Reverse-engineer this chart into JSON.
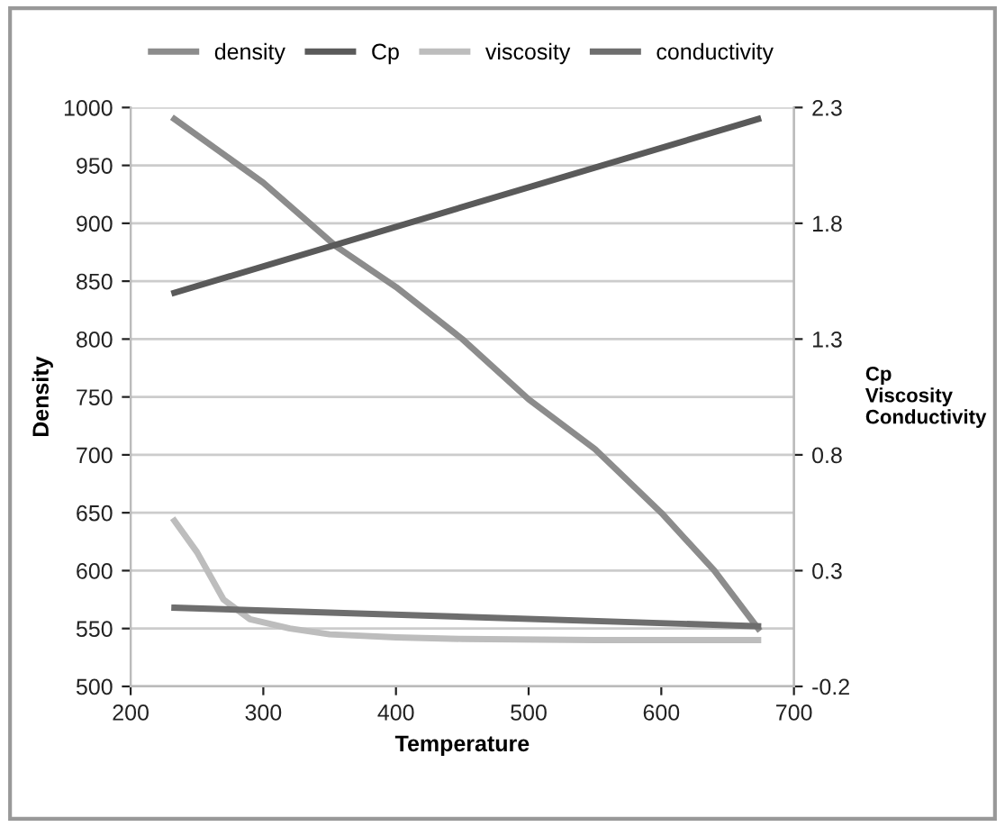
{
  "chart_data": {
    "type": "line",
    "xlabel": "Temperature",
    "ylabel": "Density",
    "y2label": "Cp\nViscosity\nConductivity",
    "xlim": [
      200,
      700
    ],
    "xticks": [
      200,
      300,
      400,
      500,
      600,
      700
    ],
    "ylim": [
      500,
      1000
    ],
    "yticks": [
      500,
      550,
      600,
      650,
      700,
      750,
      800,
      850,
      900,
      950,
      1000
    ],
    "y2lim": [
      -0.2,
      2.3
    ],
    "y2ticks": [
      -0.2,
      0.3,
      0.8,
      1.3,
      1.8,
      2.3
    ],
    "grid": "y",
    "legend": "top",
    "marker": "none",
    "line_style": "solid",
    "series": [
      {
        "name": "density",
        "color": "#8c8c8c",
        "x": [
          233,
          300,
          355,
          400,
          450,
          500,
          550,
          600,
          640,
          673
        ],
        "values": [
          990,
          935,
          880,
          845,
          800,
          748,
          705,
          650,
          600,
          550
        ]
      },
      {
        "name": "Cp",
        "color": "#5a5a5a",
        "axis": "y2",
        "x": [
          233,
          673
        ],
        "values": [
          1.5,
          2.25
        ]
      },
      {
        "name": "viscosity",
        "color": "#bdbdbd",
        "axis": "y2",
        "x": [
          233,
          250,
          270,
          290,
          320,
          350,
          400,
          450,
          550,
          673
        ],
        "values": [
          0.515,
          0.38,
          0.175,
          0.09,
          0.05,
          0.025,
          0.012,
          0.005,
          0.0,
          0.0
        ]
      },
      {
        "name": "conductivity",
        "color": "#6e6e6e",
        "axis": "y2",
        "x": [
          233,
          673
        ],
        "values": [
          0.14,
          0.06
        ]
      }
    ]
  }
}
